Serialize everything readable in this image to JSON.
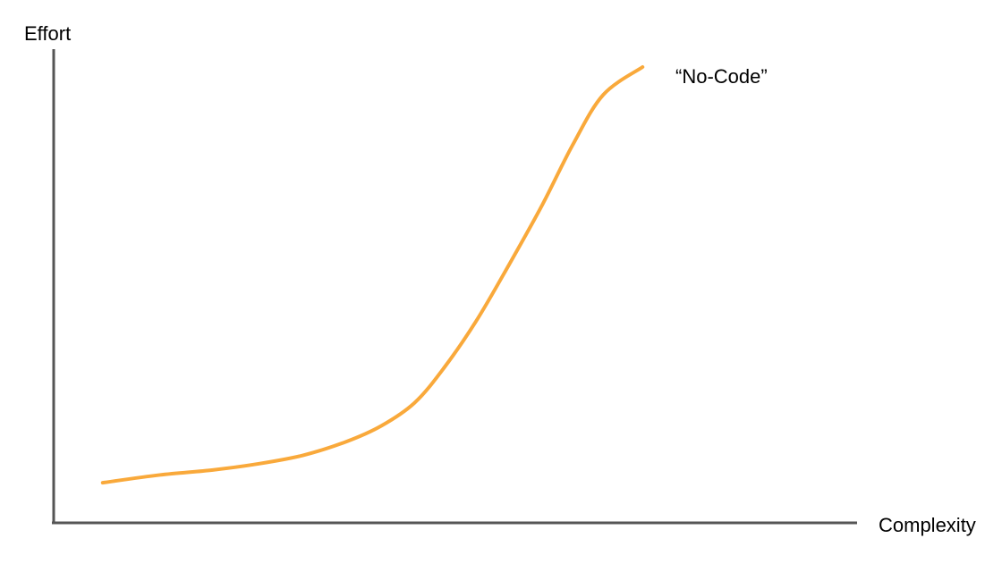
{
  "chart_data": {
    "type": "line",
    "title": "",
    "xlabel": "Complexity",
    "ylabel": "Effort",
    "xlim": [
      0,
      100
    ],
    "ylim": [
      0,
      100
    ],
    "grid": false,
    "legend": "none",
    "annotations": [
      "“No-Code”"
    ],
    "series": [
      {
        "name": "“No-Code”",
        "color": "#f9a93b",
        "x": [
          6.1,
          13.2,
          19.8,
          25.3,
          31.0,
          36.4,
          40.8,
          44.9,
          48.5,
          52.6,
          56.7,
          60.8,
          64.6,
          68.4,
          73.3
        ],
        "y": [
          8.8,
          10.5,
          11.6,
          12.9,
          14.8,
          17.8,
          21.3,
          26.3,
          33.8,
          44.3,
          56.7,
          69.7,
          82.9,
          93.9,
          100
        ]
      }
    ],
    "colors": {
      "axis": "#555555",
      "line": "#f9a93b",
      "text": "#000000"
    }
  }
}
